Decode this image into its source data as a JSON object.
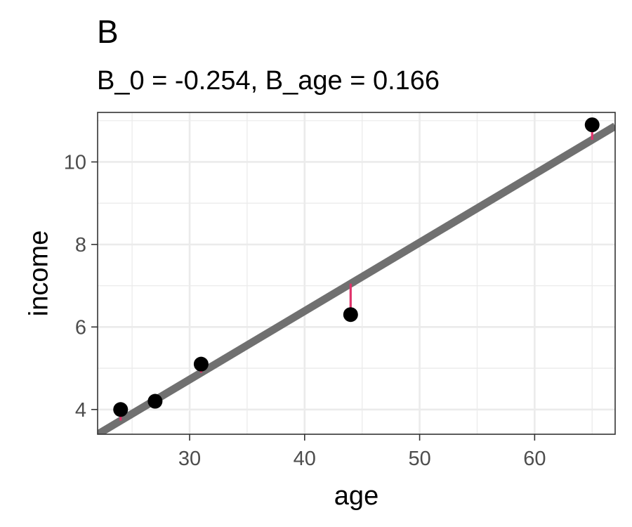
{
  "chart_data": {
    "type": "scatter",
    "title": "B",
    "subtitle": "B_0 = -0.254, B_age = 0.166",
    "xlabel": "age",
    "ylabel": "income",
    "xlim": [
      22,
      67
    ],
    "ylim": [
      3.4,
      11.2
    ],
    "x_ticks": [
      30,
      40,
      50,
      60
    ],
    "y_ticks": [
      4,
      6,
      8,
      10
    ],
    "grid": true,
    "regression": {
      "intercept": -0.254,
      "slope": 0.166,
      "color": "#707070"
    },
    "residual_color": "#e0336b",
    "point_color": "#000000",
    "points": [
      {
        "x": 24,
        "y": 4.0
      },
      {
        "x": 27,
        "y": 4.2
      },
      {
        "x": 31,
        "y": 5.1
      },
      {
        "x": 44,
        "y": 6.3
      },
      {
        "x": 65,
        "y": 10.9
      }
    ]
  }
}
